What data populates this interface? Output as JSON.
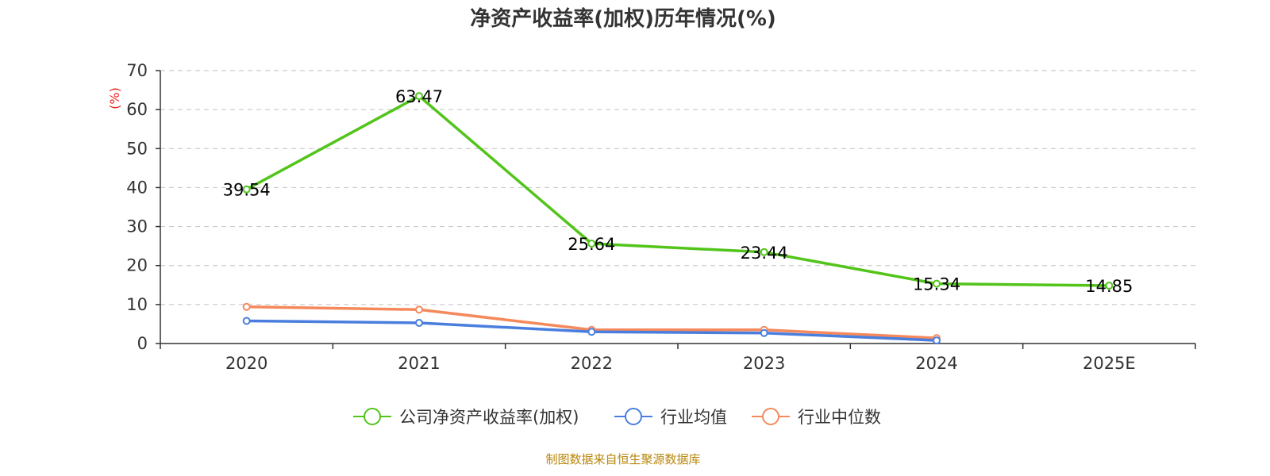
{
  "chart_data": {
    "type": "line",
    "title": "净资产收益率(加权)历年情况(%)",
    "ylabel": "(%)",
    "xlabel": "",
    "categories": [
      "2020",
      "2021",
      "2022",
      "2023",
      "2024",
      "2025E"
    ],
    "ylim": [
      0,
      70
    ],
    "yticks": [
      0,
      10,
      20,
      30,
      40,
      50,
      60,
      70
    ],
    "grid": true,
    "legend_position": "bottom-center",
    "series": [
      {
        "name": "公司净资产收益率(加权)",
        "color": "#52c41a",
        "values": [
          39.54,
          63.47,
          25.64,
          23.44,
          15.34,
          14.85
        ],
        "labels": [
          "39.54",
          "63.47",
          "25.64",
          "23.44",
          "15.34",
          "14.85"
        ]
      },
      {
        "name": "行业均值",
        "color": "#4a7ede",
        "values": [
          5.8,
          5.3,
          3.0,
          2.7,
          0.8,
          null
        ]
      },
      {
        "name": "行业中位数",
        "color": "#f5895c",
        "values": [
          9.4,
          8.7,
          3.5,
          3.5,
          1.4,
          null
        ]
      }
    ],
    "ylabel_color": "#e8261d"
  },
  "source": {
    "text": "制图数据来自恒生聚源数据库",
    "color": "#b8860b"
  }
}
